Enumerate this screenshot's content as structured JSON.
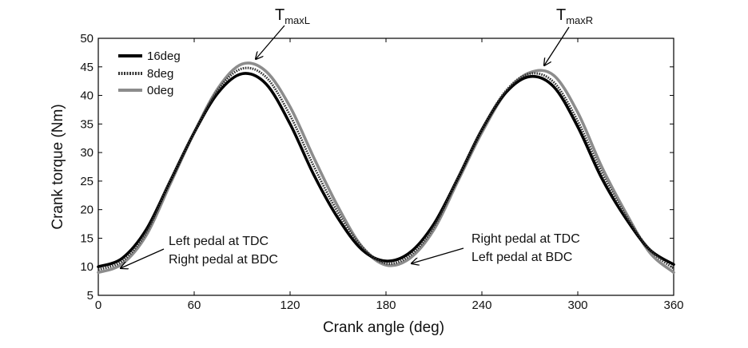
{
  "chart_data": {
    "type": "line",
    "title": "",
    "xlabel": "Crank angle (deg)",
    "ylabel": "Crank torque (Nm)",
    "xlim": [
      0,
      360
    ],
    "ylim": [
      5,
      50
    ],
    "xticks": [
      0,
      60,
      120,
      180,
      240,
      300,
      360
    ],
    "yticks": [
      5,
      10,
      15,
      20,
      25,
      30,
      35,
      40,
      45,
      50
    ],
    "grid": false,
    "legend_position": "top-left",
    "x": [
      0,
      15,
      30,
      45,
      60,
      75,
      90,
      105,
      120,
      135,
      150,
      165,
      180,
      195,
      210,
      225,
      240,
      255,
      270,
      285,
      300,
      315,
      330,
      345,
      360
    ],
    "series": [
      {
        "name": "16deg",
        "color": "#000000",
        "style": "solid",
        "values": [
          10.0,
          11.5,
          16.5,
          25.0,
          33.5,
          40.5,
          43.8,
          42.0,
          35.0,
          26.0,
          18.5,
          13.0,
          11.0,
          12.5,
          17.5,
          25.5,
          34.0,
          40.5,
          43.3,
          41.5,
          34.5,
          25.5,
          18.5,
          13.0,
          10.4
        ]
      },
      {
        "name": "8deg",
        "color": "#333333",
        "style": "dotted",
        "values": [
          9.5,
          11.0,
          16.0,
          25.0,
          33.5,
          41.0,
          44.7,
          43.2,
          36.5,
          27.5,
          19.5,
          13.5,
          10.6,
          12.0,
          17.0,
          25.5,
          34.0,
          40.8,
          43.8,
          42.3,
          35.5,
          26.5,
          19.0,
          13.0,
          9.7
        ]
      },
      {
        "name": "0deg",
        "color": "#8c8c8c",
        "style": "solid",
        "values": [
          9.0,
          10.5,
          15.5,
          24.5,
          33.5,
          41.3,
          45.5,
          44.2,
          38.0,
          29.0,
          20.5,
          13.5,
          10.3,
          11.5,
          16.5,
          25.0,
          33.5,
          40.5,
          44.0,
          43.5,
          37.0,
          27.5,
          19.5,
          12.5,
          9.0
        ]
      }
    ],
    "annotations": {
      "peak_left_main": "T",
      "peak_left_sub": "maxL",
      "peak_right_main": "T",
      "peak_right_sub": "maxR",
      "left_note_line1": "Left pedal at TDC",
      "left_note_line2": "Right pedal at BDC",
      "right_note_line1": "Right pedal at TDC",
      "right_note_line2": "Left pedal at BDC"
    }
  }
}
